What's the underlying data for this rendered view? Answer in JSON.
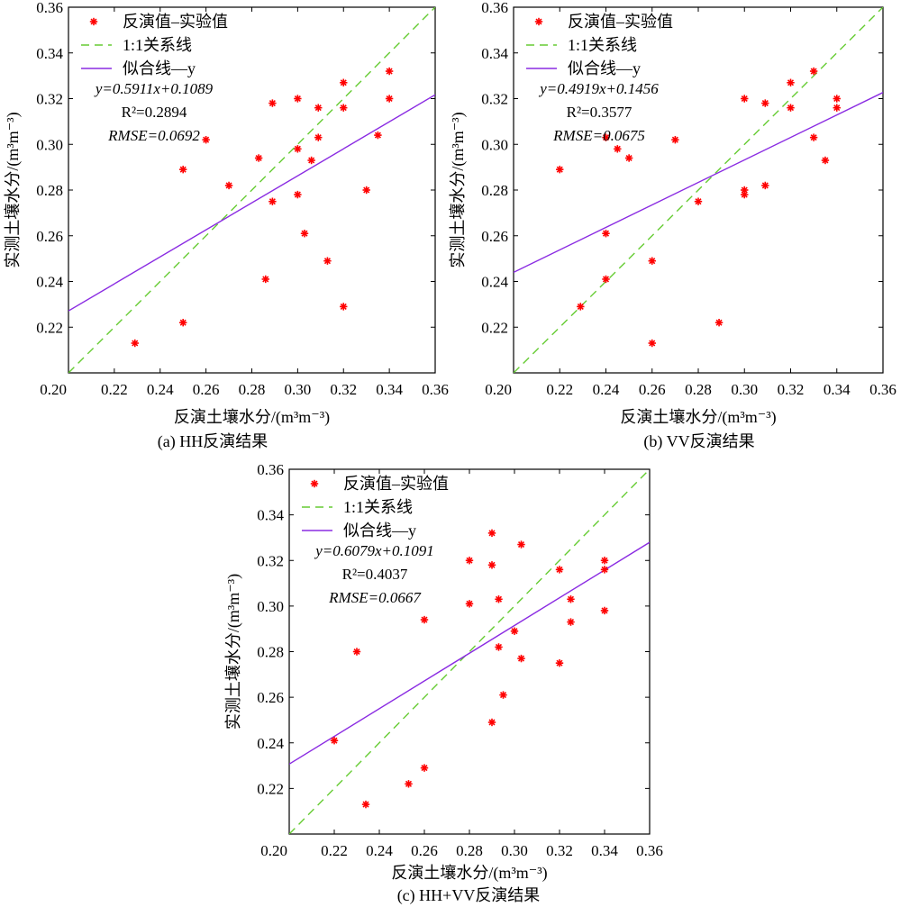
{
  "figure": {
    "colors": {
      "points": "#ff0000",
      "one_to_one": "#66cc33",
      "fit": "#8a2be2",
      "axis": "#000000"
    }
  },
  "chart_data": [
    {
      "type": "scatter",
      "caption": "(a) HH反演结果",
      "xlabel": "反演土壤水分/(m³m⁻³)",
      "ylabel": "实测土壤水分/(m³m⁻³)",
      "xlim": [
        0.2,
        0.36
      ],
      "ylim": [
        0.2,
        0.36
      ],
      "xticks": [
        "0.20",
        "0.22",
        "0.24",
        "0.26",
        "0.28",
        "0.30",
        "0.32",
        "0.34",
        "0.36"
      ],
      "yticks": [
        "0.20",
        "0.22",
        "0.24",
        "0.26",
        "0.28",
        "0.30",
        "0.32",
        "0.34",
        "0.36"
      ],
      "grid": false,
      "legend_position": "top-left",
      "legend": [
        "反演值–实验值",
        "1:1关系线",
        "似合线—y"
      ],
      "equation": "y=0.5911x+0.1089",
      "r2": "R²=0.2894",
      "rmse": "RMSE=0.0692",
      "fit": {
        "slope": 0.5911,
        "intercept": 0.1089
      },
      "points": [
        [
          0.229,
          0.213
        ],
        [
          0.25,
          0.222
        ],
        [
          0.25,
          0.289
        ],
        [
          0.26,
          0.302
        ],
        [
          0.27,
          0.282
        ],
        [
          0.283,
          0.294
        ],
        [
          0.286,
          0.241
        ],
        [
          0.289,
          0.318
        ],
        [
          0.289,
          0.275
        ],
        [
          0.3,
          0.32
        ],
        [
          0.3,
          0.298
        ],
        [
          0.3,
          0.278
        ],
        [
          0.303,
          0.261
        ],
        [
          0.306,
          0.293
        ],
        [
          0.309,
          0.316
        ],
        [
          0.309,
          0.303
        ],
        [
          0.313,
          0.249
        ],
        [
          0.32,
          0.327
        ],
        [
          0.32,
          0.316
        ],
        [
          0.32,
          0.229
        ],
        [
          0.33,
          0.28
        ],
        [
          0.335,
          0.304
        ],
        [
          0.34,
          0.332
        ],
        [
          0.34,
          0.32
        ]
      ]
    },
    {
      "type": "scatter",
      "caption": "(b) VV反演结果",
      "xlabel": "反演土壤水分/(m³m⁻³)",
      "ylabel": "实测土壤水分/(m³m⁻³)",
      "xlim": [
        0.2,
        0.36
      ],
      "ylim": [
        0.2,
        0.36
      ],
      "xticks": [
        "0.20",
        "0.22",
        "0.24",
        "0.26",
        "0.28",
        "0.30",
        "0.32",
        "0.34",
        "0.36"
      ],
      "yticks": [
        "0.20",
        "0.22",
        "0.24",
        "0.26",
        "0.28",
        "0.30",
        "0.32",
        "0.34",
        "0.36"
      ],
      "grid": false,
      "legend_position": "top-left",
      "legend": [
        "反演值–实验值",
        "1:1关系线",
        "似合线—y"
      ],
      "equation": "y=0.4919x+0.1456",
      "r2": "R²=0.3577",
      "rmse": "RMSE=0.0675",
      "fit": {
        "slope": 0.4919,
        "intercept": 0.1456
      },
      "points": [
        [
          0.22,
          0.289
        ],
        [
          0.229,
          0.229
        ],
        [
          0.24,
          0.303
        ],
        [
          0.24,
          0.261
        ],
        [
          0.24,
          0.241
        ],
        [
          0.245,
          0.298
        ],
        [
          0.25,
          0.294
        ],
        [
          0.26,
          0.249
        ],
        [
          0.26,
          0.213
        ],
        [
          0.27,
          0.302
        ],
        [
          0.28,
          0.275
        ],
        [
          0.289,
          0.222
        ],
        [
          0.3,
          0.32
        ],
        [
          0.3,
          0.28
        ],
        [
          0.3,
          0.278
        ],
        [
          0.309,
          0.318
        ],
        [
          0.309,
          0.282
        ],
        [
          0.32,
          0.327
        ],
        [
          0.32,
          0.316
        ],
        [
          0.33,
          0.332
        ],
        [
          0.33,
          0.303
        ],
        [
          0.335,
          0.293
        ],
        [
          0.34,
          0.32
        ],
        [
          0.34,
          0.316
        ]
      ]
    },
    {
      "type": "scatter",
      "caption": "(c) HH+VV反演结果",
      "xlabel": "反演土壤水分/(m³m⁻³)",
      "ylabel": "实测土壤水分/(m³m⁻³)",
      "xlim": [
        0.2,
        0.36
      ],
      "ylim": [
        0.2,
        0.36
      ],
      "xticks": [
        "0.20",
        "0.22",
        "0.24",
        "0.26",
        "0.28",
        "0.30",
        "0.32",
        "0.34",
        "0.36"
      ],
      "yticks": [
        "0.20",
        "0.22",
        "0.24",
        "0.26",
        "0.28",
        "0.30",
        "0.32",
        "0.34",
        "0.36"
      ],
      "grid": false,
      "legend_position": "top-left",
      "legend": [
        "反演值–实验值",
        "1:1关系线",
        "似合线—y"
      ],
      "equation": "y=0.6079x+0.1091",
      "r2": "R²=0.4037",
      "rmse": "RMSE=0.0667",
      "fit": {
        "slope": 0.6079,
        "intercept": 0.1091
      },
      "points": [
        [
          0.22,
          0.241
        ],
        [
          0.23,
          0.28
        ],
        [
          0.234,
          0.213
        ],
        [
          0.253,
          0.222
        ],
        [
          0.26,
          0.294
        ],
        [
          0.26,
          0.229
        ],
        [
          0.28,
          0.32
        ],
        [
          0.28,
          0.301
        ],
        [
          0.29,
          0.332
        ],
        [
          0.29,
          0.318
        ],
        [
          0.29,
          0.249
        ],
        [
          0.293,
          0.303
        ],
        [
          0.293,
          0.282
        ],
        [
          0.295,
          0.261
        ],
        [
          0.3,
          0.289
        ],
        [
          0.303,
          0.327
        ],
        [
          0.303,
          0.277
        ],
        [
          0.32,
          0.316
        ],
        [
          0.32,
          0.275
        ],
        [
          0.325,
          0.303
        ],
        [
          0.325,
          0.293
        ],
        [
          0.34,
          0.32
        ],
        [
          0.34,
          0.316
        ],
        [
          0.34,
          0.298
        ]
      ]
    }
  ]
}
